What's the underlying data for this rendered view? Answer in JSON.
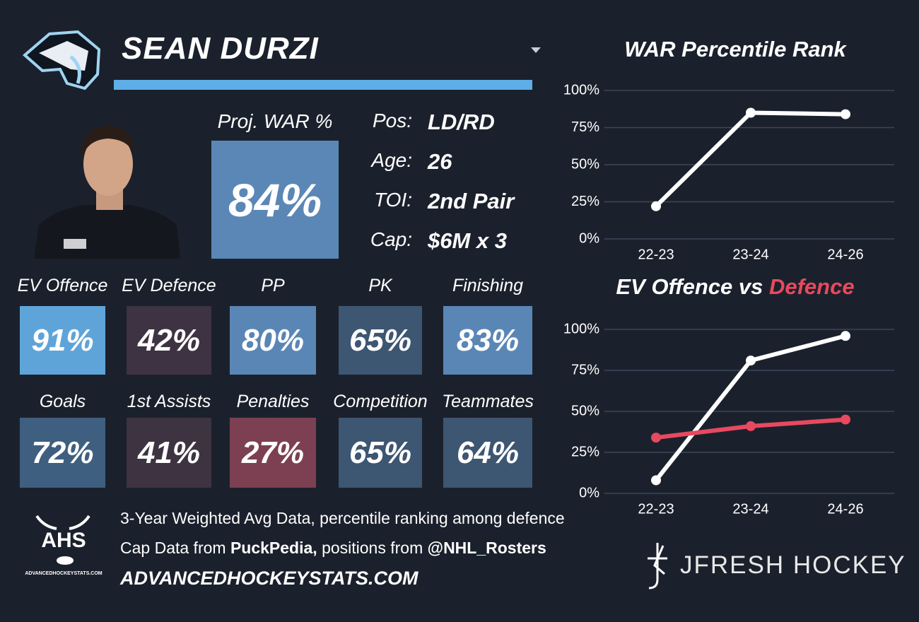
{
  "header": {
    "name": "SEAN DURZI"
  },
  "proj_war": {
    "label": "Proj. WAR %",
    "value": "84%",
    "color": "#5b87b6"
  },
  "info": [
    {
      "label": "Pos:",
      "value": "LD/RD"
    },
    {
      "label": "Age:",
      "value": "26"
    },
    {
      "label": "TOI:",
      "value": "2nd Pair"
    },
    {
      "label": "Cap:",
      "value": "$6M x 3"
    }
  ],
  "tiles": [
    {
      "label": "EV Offence",
      "value": "91%",
      "color": "#5fa4d9"
    },
    {
      "label": "EV Defence",
      "value": "42%",
      "color": "#3e3342"
    },
    {
      "label": "PP",
      "value": "80%",
      "color": "#5a86b5"
    },
    {
      "label": "PK",
      "value": "65%",
      "color": "#3d5671"
    },
    {
      "label": "Finishing",
      "value": "83%",
      "color": "#5a86b5"
    },
    {
      "label": "Goals",
      "value": "72%",
      "color": "#3f5f80"
    },
    {
      "label": "1st Assists",
      "value": "41%",
      "color": "#3d3341"
    },
    {
      "label": "Penalties",
      "value": "27%",
      "color": "#7c4052"
    },
    {
      "label": "Competition",
      "value": "65%",
      "color": "#3d5671"
    },
    {
      "label": "Teammates",
      "value": "64%",
      "color": "#3d5671"
    }
  ],
  "footer": {
    "line1": "3-Year Weighted Avg Data, percentile ranking among defence",
    "line2": [
      {
        "text": "Cap Data from ",
        "bold": false
      },
      {
        "text": "PuckPedia,",
        "bold": true
      },
      {
        "text": " positions from ",
        "bold": false
      },
      {
        "text": "@NHL_Rosters",
        "bold": true
      }
    ],
    "site": "ADVANCEDHOCKEYSTATS.COM",
    "ahs_logo": "AHS",
    "ahs_logo_sub": "ADVANCEDHOCKEYSTATS.COM",
    "brand": "JFRESH HOCKEY"
  },
  "chart_data": [
    {
      "type": "line",
      "title": "WAR Percentile Rank",
      "categories": [
        "22-23",
        "23-24",
        "24-26"
      ],
      "series": [
        {
          "color": "#ffffff",
          "values": [
            22,
            85,
            84
          ]
        }
      ],
      "ylim": [
        0,
        100
      ],
      "yticks": [
        {
          "value": 0,
          "label": "0%"
        },
        {
          "value": 25,
          "label": "25%"
        },
        {
          "value": 50,
          "label": "50%"
        },
        {
          "value": 75,
          "label": "75%"
        },
        {
          "value": 100,
          "label": "100%"
        }
      ],
      "grid": true
    },
    {
      "type": "line",
      "title": "EV Offence vs",
      "title_highlight": "Defence",
      "title_highlight_color": "#e8495f",
      "categories": [
        "22-23",
        "23-24",
        "24-26"
      ],
      "series": [
        {
          "color": "#ffffff",
          "values": [
            8,
            81,
            96
          ]
        },
        {
          "color": "#e8495f",
          "values": [
            34,
            41,
            45
          ]
        }
      ],
      "ylim": [
        0,
        100
      ],
      "yticks": [
        {
          "value": 0,
          "label": "0%"
        },
        {
          "value": 25,
          "label": "25%"
        },
        {
          "value": 50,
          "label": "50%"
        },
        {
          "value": 75,
          "label": "75%"
        },
        {
          "value": 100,
          "label": "100%"
        }
      ],
      "grid": true
    }
  ]
}
